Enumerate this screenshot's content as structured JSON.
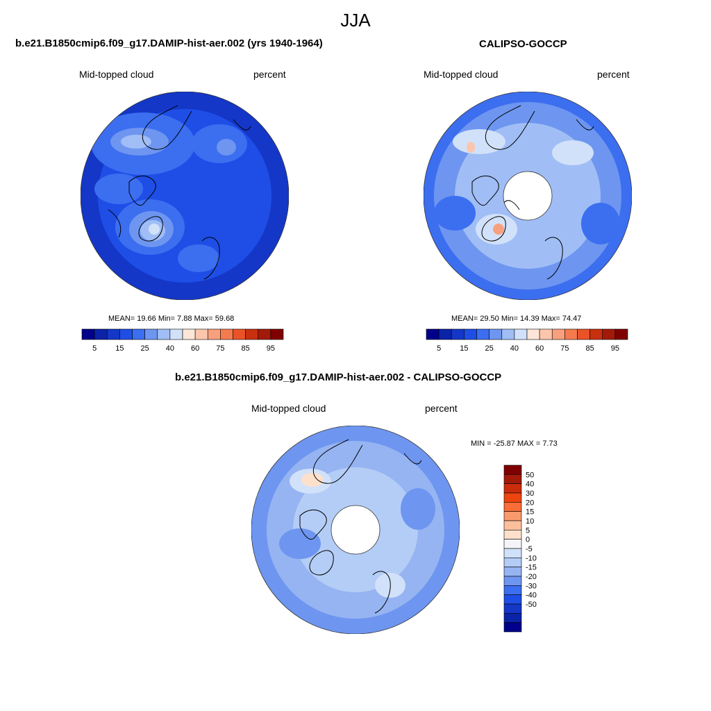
{
  "figure": {
    "title": "JJA",
    "panel_left": {
      "title": "b.e21.B1850cmip6.f09_g17.DAMIP-hist-aer.002 (yrs 1940-1964)",
      "left_label": "Mid-topped cloud",
      "right_label": "percent",
      "stats": "MEAN=  19.66  Min=   7.88  Max=  59.68"
    },
    "panel_right": {
      "title": "CALIPSO-GOCCP",
      "left_label": "Mid-topped cloud",
      "right_label": "percent",
      "stats": "MEAN=  29.50  Min=  14.39  Max=  74.47"
    },
    "panel_diff": {
      "title": "b.e21.B1850cmip6.f09_g17.DAMIP-hist-aer.002 - CALIPSO-GOCCP",
      "left_label": "Mid-topped cloud",
      "right_label": "percent",
      "stats": "MIN = -25.87 MAX =   7.73"
    },
    "colorbar_abs": {
      "colors": [
        "#00008b",
        "#0a23a8",
        "#1437c8",
        "#1e4ee6",
        "#3c6ef0",
        "#6e96f0",
        "#a0bef5",
        "#d2e1fa",
        "#fde6d8",
        "#fcc6ad",
        "#f8a07e",
        "#f57b4f",
        "#ea5228",
        "#c8300f",
        "#a31a0a",
        "#7f0000"
      ],
      "tick_labels": [
        "5",
        "15",
        "25",
        "40",
        "60",
        "75",
        "85",
        "95"
      ]
    },
    "colorbar_diff": {
      "colors": [
        "#7f0000",
        "#a31a0a",
        "#cb2d0c",
        "#ee4410",
        "#fb6d38",
        "#f99a6c",
        "#fbbf9c",
        "#fde0cc",
        "#f4f4f8",
        "#d2e1fa",
        "#b4cdf6",
        "#96b4f2",
        "#6e96f0",
        "#3c6ef0",
        "#1e4ee6",
        "#1437c8",
        "#0a23a8",
        "#00008b"
      ],
      "tick_labels": [
        "50",
        "40",
        "30",
        "20",
        "15",
        "10",
        "5",
        "0",
        "-5",
        "-10",
        "-15",
        "-20",
        "-30",
        "-40",
        "-50"
      ]
    }
  }
}
